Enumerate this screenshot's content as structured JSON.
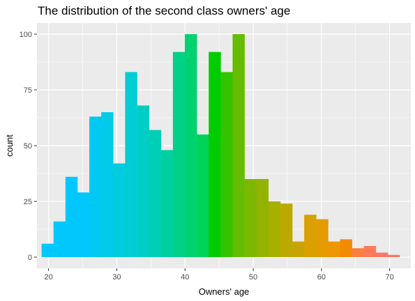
{
  "chart_data": {
    "type": "bar",
    "title": "The distribution of the second class owners' age",
    "xlabel": "Owners' age",
    "ylabel": "count",
    "xlim": [
      18.3,
      73.1
    ],
    "ylim": [
      -5,
      105
    ],
    "x_ticks": [
      20,
      30,
      40,
      50,
      60,
      70
    ],
    "y_ticks": [
      0,
      25,
      50,
      75,
      100
    ],
    "x_tick_labels": [
      "20",
      "30",
      "40",
      "50",
      "60",
      "70"
    ],
    "y_tick_labels": [
      "0",
      "25",
      "50",
      "75",
      "100"
    ],
    "grid": true,
    "legend": "none",
    "panel_background": "#ebebeb",
    "grid_color": "#ffffff",
    "bin_width": 1.75,
    "bins": [
      {
        "x": 19.85,
        "count": 6,
        "color": "#00c8fd"
      },
      {
        "x": 21.6,
        "count": 16,
        "color": "#00c8fd"
      },
      {
        "x": 23.35,
        "count": 36,
        "color": "#00c8fd"
      },
      {
        "x": 25.1,
        "count": 29,
        "color": "#00c8fd"
      },
      {
        "x": 26.85,
        "count": 63,
        "color": "#00c9f2"
      },
      {
        "x": 28.6,
        "count": 65,
        "color": "#00cbe8"
      },
      {
        "x": 30.35,
        "count": 42,
        "color": "#00ccde"
      },
      {
        "x": 32.1,
        "count": 83,
        "color": "#00cdd3"
      },
      {
        "x": 33.85,
        "count": 68,
        "color": "#00cec5"
      },
      {
        "x": 35.6,
        "count": 57,
        "color": "#00cfb7"
      },
      {
        "x": 37.35,
        "count": 48,
        "color": "#00d09f"
      },
      {
        "x": 39.1,
        "count": 92,
        "color": "#00d187"
      },
      {
        "x": 40.85,
        "count": 100,
        "color": "#00d270"
      },
      {
        "x": 42.6,
        "count": 55,
        "color": "#00d458"
      },
      {
        "x": 44.35,
        "count": 92,
        "color": "#00cc00"
      },
      {
        "x": 46.1,
        "count": 83,
        "color": "#33c400"
      },
      {
        "x": 47.85,
        "count": 100,
        "color": "#66bc00"
      },
      {
        "x": 49.6,
        "count": 35,
        "color": "#7cb800"
      },
      {
        "x": 51.35,
        "count": 35,
        "color": "#92b300"
      },
      {
        "x": 53.1,
        "count": 25,
        "color": "#a6b000"
      },
      {
        "x": 54.85,
        "count": 24,
        "color": "#bca900"
      },
      {
        "x": 56.6,
        "count": 7,
        "color": "#c9a400"
      },
      {
        "x": 58.35,
        "count": 19,
        "color": "#d8a000"
      },
      {
        "x": 60.1,
        "count": 17,
        "color": "#e49b00"
      },
      {
        "x": 61.85,
        "count": 7,
        "color": "#ee9500"
      },
      {
        "x": 63.6,
        "count": 8,
        "color": "#f48a00"
      },
      {
        "x": 65.35,
        "count": 4,
        "color": "#fb7f3f"
      },
      {
        "x": 67.1,
        "count": 5,
        "color": "#fb7a58"
      },
      {
        "x": 68.85,
        "count": 2,
        "color": "#fa7868"
      },
      {
        "x": 70.6,
        "count": 1,
        "color": "#f8766d"
      }
    ]
  }
}
